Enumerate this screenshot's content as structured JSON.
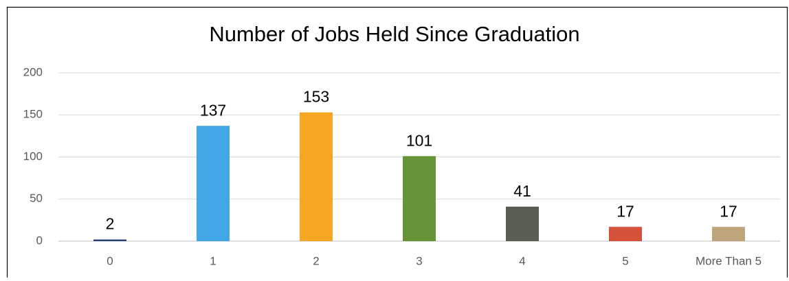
{
  "chart_data": {
    "type": "bar",
    "title": "Number of Jobs Held Since Graduation",
    "categories": [
      "0",
      "1",
      "2",
      "3",
      "4",
      "5",
      "More Than 5"
    ],
    "values": [
      2,
      137,
      153,
      101,
      41,
      17,
      17
    ],
    "colors": [
      "#264478",
      "#41a5e6",
      "#f5a623",
      "#679436",
      "#595e54",
      "#d4513a",
      "#bfa57c"
    ],
    "ylim": [
      0,
      200
    ],
    "yticks": [
      0,
      50,
      100,
      150,
      200
    ],
    "grid": true
  }
}
